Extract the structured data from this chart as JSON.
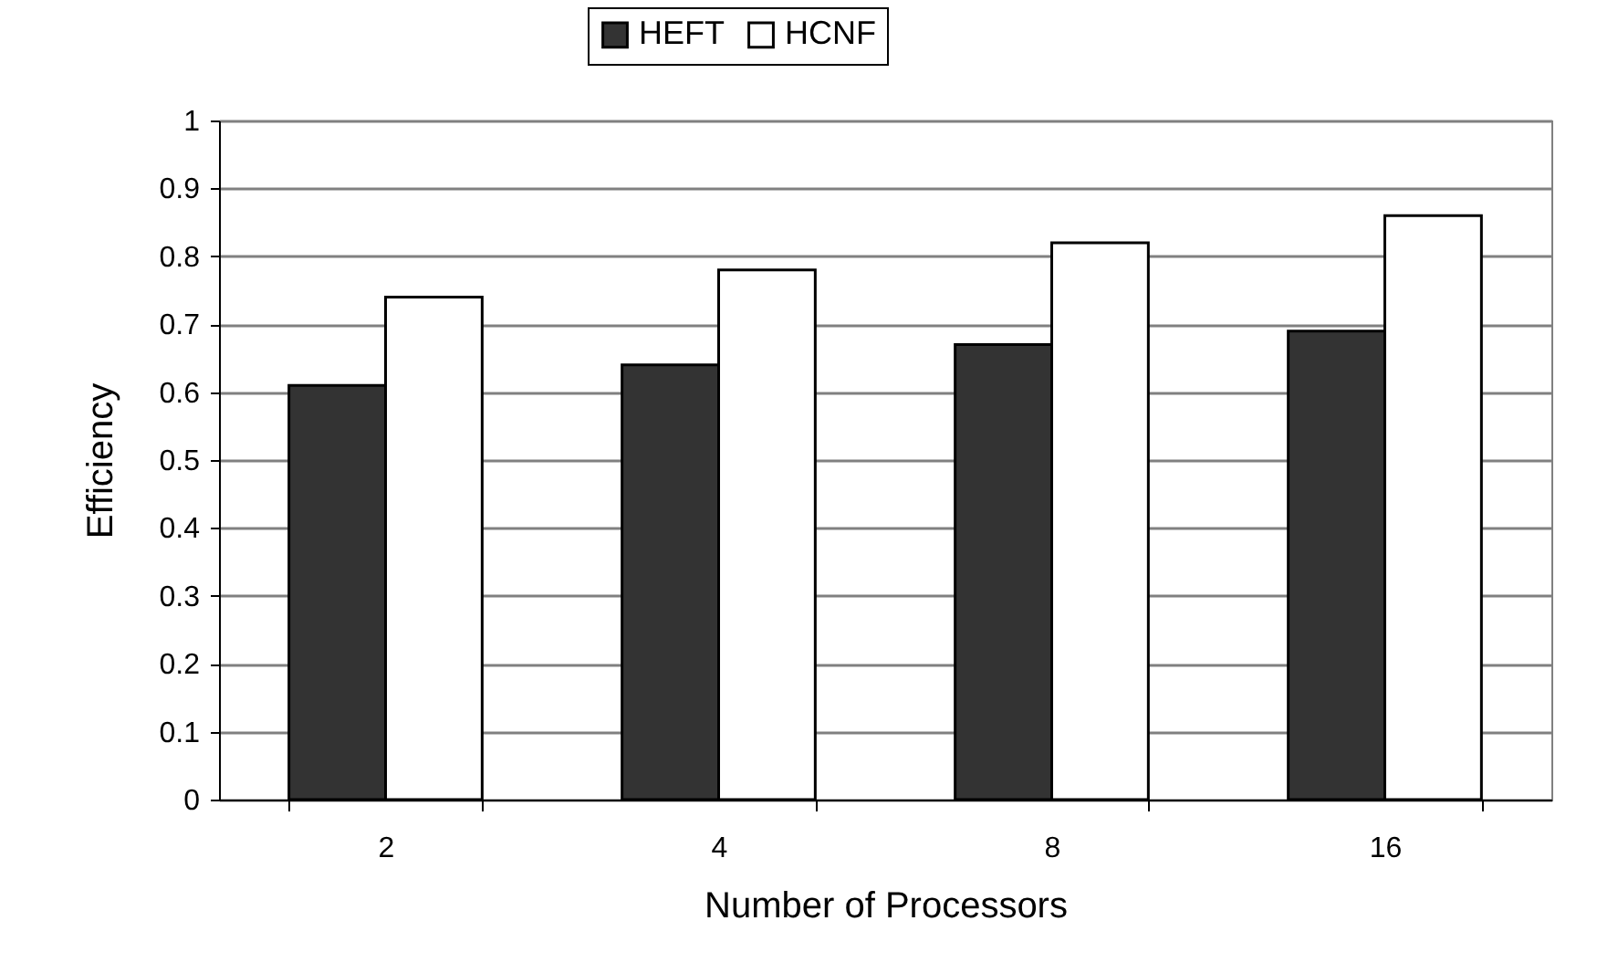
{
  "chart_data": {
    "type": "bar",
    "xlabel": "Number of Processors",
    "ylabel": "Efficiency",
    "categories": [
      "2",
      "4",
      "8",
      "16"
    ],
    "series": [
      {
        "name": "HEFT",
        "color": "#333333",
        "values": [
          0.61,
          0.64,
          0.67,
          0.69
        ]
      },
      {
        "name": "HCNF",
        "color": "#ffffff",
        "values": [
          0.74,
          0.78,
          0.82,
          0.86
        ]
      }
    ],
    "ylim": [
      0,
      1
    ],
    "yticks": [
      0,
      0.1,
      0.2,
      0.3,
      0.4,
      0.5,
      0.6,
      0.7,
      0.8,
      0.9,
      1
    ],
    "grid": "y",
    "legend": "top"
  }
}
